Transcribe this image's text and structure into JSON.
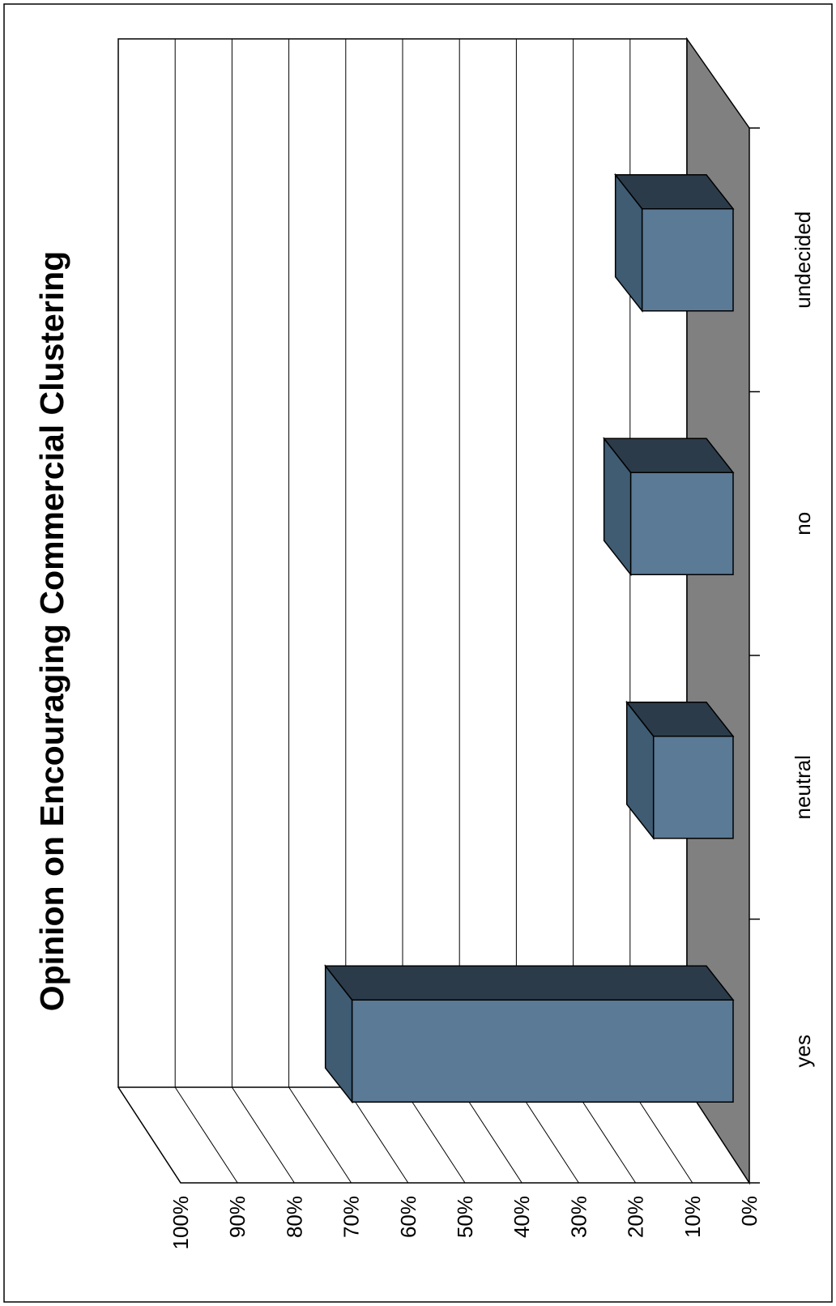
{
  "chart_data": {
    "type": "bar",
    "title": "Opinion on Encouraging Commercial Clustering",
    "orientation": "rotated 90° counter-clockwise (values increase toward the left)",
    "three_d": true,
    "categories": [
      "yes",
      "neutral",
      "no",
      "undecided"
    ],
    "series": [
      {
        "values": [
          67,
          14,
          18,
          16
        ]
      }
    ],
    "ylim": [
      0,
      100
    ],
    "y_ticks": [
      "0%",
      "10%",
      "20%",
      "30%",
      "40%",
      "50%",
      "60%",
      "70%",
      "80%",
      "90%",
      "100%"
    ],
    "grid": true,
    "legend": "none",
    "colors": {
      "bar_front": "#5a7a96",
      "bar_side": "#3f5c73",
      "bar_top": "#2b3b4a",
      "floor": "#808080",
      "gridline": "#000000"
    }
  }
}
